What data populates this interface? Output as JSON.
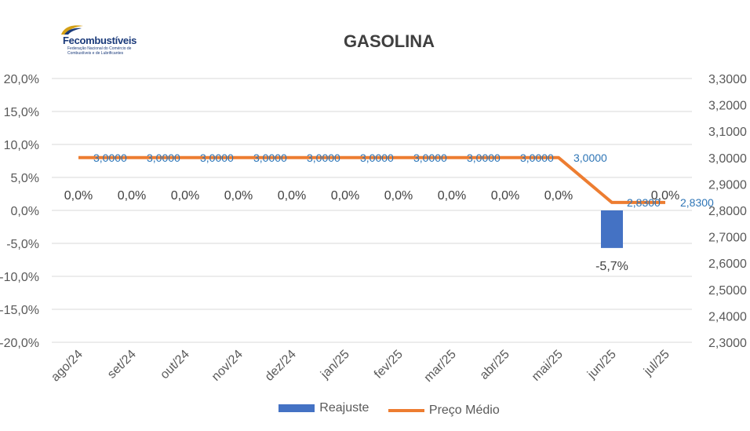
{
  "logo": {
    "name": "Fecombustíveis",
    "tagline": "Federação Nacional do Comércio de Combustíveis e de Lubrificantes"
  },
  "chart_data": {
    "type": "bar",
    "title": "GASOLINA",
    "categories": [
      "ago/24",
      "set/24",
      "out/24",
      "nov/24",
      "dez/24",
      "jan/25",
      "fev/25",
      "mar/25",
      "abr/25",
      "mai/25",
      "jun/25",
      "jul/25"
    ],
    "series": [
      {
        "name": "Reajuste",
        "type": "bar",
        "axis": "left",
        "color": "#4472c4",
        "values": [
          0,
          0,
          0,
          0,
          0,
          0,
          0,
          0,
          0,
          0,
          -0.057,
          0
        ],
        "labels": [
          "0,0%",
          "0,0%",
          "0,0%",
          "0,0%",
          "0,0%",
          "0,0%",
          "0,0%",
          "0,0%",
          "0,0%",
          "0,0%",
          "-5,7%",
          "0,0%"
        ]
      },
      {
        "name": "Preço Médio",
        "type": "line",
        "axis": "right",
        "color": "#ed7d31",
        "values": [
          3.0,
          3.0,
          3.0,
          3.0,
          3.0,
          3.0,
          3.0,
          3.0,
          3.0,
          3.0,
          2.83,
          2.83
        ],
        "labels": [
          "3,0000",
          "3,0000",
          "3,0000",
          "3,0000",
          "3,0000",
          "3,0000",
          "3,0000",
          "3,0000",
          "3,0000",
          "3,0000",
          "2,8300",
          "2,8300"
        ]
      }
    ],
    "y_left": {
      "ylim": [
        -0.2,
        0.2
      ],
      "ticks": [
        0.2,
        0.15,
        0.1,
        0.05,
        0,
        -0.05,
        -0.1,
        -0.15,
        -0.2
      ],
      "tick_labels": [
        "20,0%",
        "15,0%",
        "10,0%",
        "5,0%",
        "0,0%",
        "-5,0%",
        "-10,0%",
        "-15,0%",
        "-20,0%"
      ]
    },
    "y_right": {
      "ylim": [
        2.3,
        3.3
      ],
      "ticks": [
        3.3,
        3.2,
        3.1,
        3.0,
        2.9,
        2.8,
        2.7,
        2.6,
        2.5,
        2.4,
        2.3
      ],
      "tick_labels": [
        "3,3000",
        "3,2000",
        "3,1000",
        "3,0000",
        "2,9000",
        "2,8000",
        "2,7000",
        "2,6000",
        "2,5000",
        "2,4000",
        "2,3000"
      ]
    },
    "grid": true,
    "legend_position": "bottom"
  }
}
